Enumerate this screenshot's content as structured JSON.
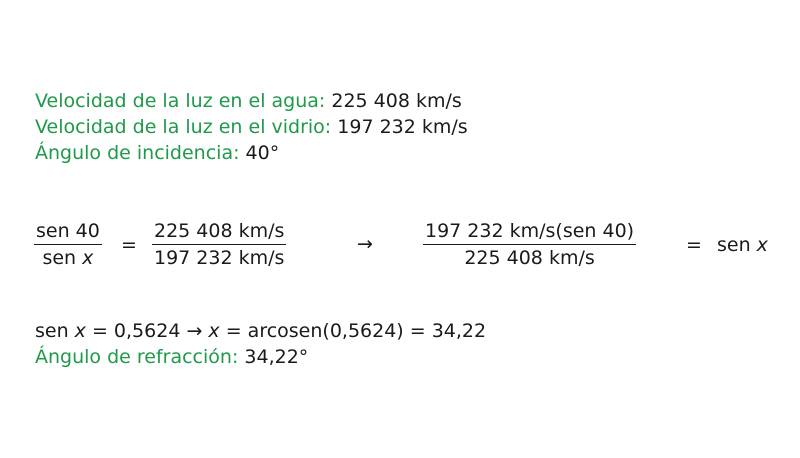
{
  "given": [
    {
      "label": "Velocidad de la luz en el agua:",
      "value": "225 408 km/s"
    },
    {
      "label": "Velocidad de la luz en el vidrio:",
      "value": "197 232 km/s"
    },
    {
      "label": "Ángulo de incidencia:",
      "value": "40°"
    }
  ],
  "equation1": {
    "left_num": "sen 40",
    "left_den_prefix": "sen ",
    "left_den_var": "x",
    "equals": "=",
    "right_num": "225 408 km/s",
    "right_den": "197 232 km/s",
    "arrow": "→"
  },
  "equation2": {
    "num": "197 232 km/s(sen 40)",
    "den": "225 408 km/s",
    "equals": "=",
    "result_prefix": "sen ",
    "result_var": "x"
  },
  "solution": {
    "part1_prefix": "sen ",
    "part1_var": "x",
    "part1_rest": " = 0,5624",
    "arrow": "→",
    "part2_var": "x",
    "part2_rest": " = arcosen(0,5624) = 34,22"
  },
  "result": {
    "label": "Ángulo de refracción:",
    "value": "34,22°"
  }
}
